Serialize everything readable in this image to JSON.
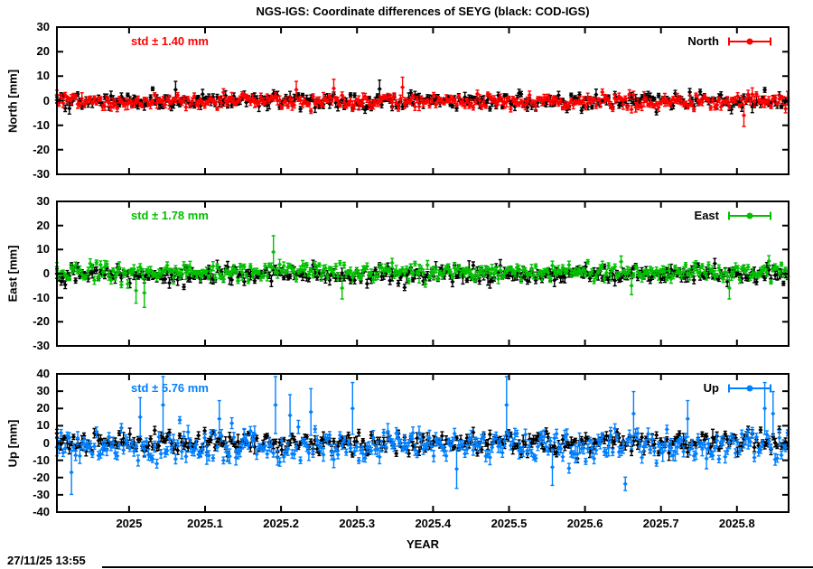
{
  "header": {
    "title": "NGS-IGS: Coordinate differences of SEYG (black: COD-IGS)"
  },
  "footer": {
    "timestamp": "27/11/25 13:55"
  },
  "xaxis": {
    "label": "YEAR",
    "range": [
      2024.905,
      2025.868
    ],
    "step": 0.00274,
    "tick_labels": [
      "2025",
      "2025.1",
      "2025.2",
      "2025.3",
      "2025.4",
      "2025.5",
      "2025.6",
      "2025.7",
      "2025.8"
    ]
  },
  "chart_data": [
    {
      "type": "scatter",
      "panel": "north",
      "ylabel": "North [mm]",
      "ylim": [
        -30,
        30
      ],
      "ytick_labels": [
        "-30",
        "-20",
        "-10",
        "0",
        "10",
        "20",
        "30"
      ],
      "std_label": "std ± 1.40 mm",
      "std_mm": 1.4,
      "legend_label": "North",
      "color": "#ff0000",
      "grid": false,
      "legend_position": "top-right",
      "series": [
        {
          "name": "COD-IGS",
          "color": "#000000",
          "mean": 0.0,
          "std": 1.5,
          "err_base": 0.7,
          "err_var": 0.7,
          "seed": 101,
          "outliers": [
            {
              "x": 2025.06,
              "y": 4.5
            },
            {
              "x": 2025.33,
              "y": 4.8
            }
          ]
        },
        {
          "name": "NGS-IGS",
          "color": "#ff0000",
          "mean": -0.4,
          "std": 1.4,
          "err_base": 0.7,
          "err_var": 0.7,
          "seed": 202,
          "outliers": [
            {
              "x": 2025.27,
              "y": 5.0
            },
            {
              "x": 2025.36,
              "y": 5.5
            },
            {
              "x": 2025.22,
              "y": 4.5
            },
            {
              "x": 2025.81,
              "y": -6.0
            }
          ]
        }
      ]
    },
    {
      "type": "scatter",
      "panel": "east",
      "ylabel": "East [mm]",
      "ylim": [
        -30,
        30
      ],
      "ytick_labels": [
        "-30",
        "-20",
        "-10",
        "0",
        "10",
        "20",
        "30"
      ],
      "std_label": "std ± 1.78 mm",
      "std_mm": 1.78,
      "legend_label": "East",
      "color": "#00c000",
      "grid": false,
      "legend_position": "top-right",
      "series": [
        {
          "name": "COD-IGS",
          "color": "#000000",
          "mean": -0.2,
          "std": 1.6,
          "err_base": 0.8,
          "err_var": 0.8,
          "seed": 303,
          "outliers": []
        },
        {
          "name": "NGS-IGS",
          "color": "#00c000",
          "mean": 0.8,
          "std": 1.78,
          "err_base": 0.8,
          "err_var": 0.8,
          "seed": 404,
          "outliers": [
            {
              "x": 2025.19,
              "y": 9.0
            },
            {
              "x": 2025.008,
              "y": -7.0
            },
            {
              "x": 2025.02,
              "y": -8.0
            },
            {
              "x": 2025.28,
              "y": -6.0
            },
            {
              "x": 2025.66,
              "y": -5.0
            },
            {
              "x": 2025.79,
              "y": -6.0
            }
          ]
        }
      ]
    },
    {
      "type": "scatter",
      "panel": "up",
      "ylabel": "Up [mm]",
      "ylim": [
        -40,
        40
      ],
      "ytick_labels": [
        "-40",
        "-30",
        "-20",
        "-10",
        "0",
        "10",
        "20",
        "30",
        "40"
      ],
      "std_label": "std ± 5.76 mm",
      "std_mm": 5.76,
      "legend_label": "Up",
      "color": "#0080ff",
      "grid": false,
      "legend_position": "top-right",
      "series": [
        {
          "name": "COD-IGS",
          "color": "#000000",
          "mean": 0.0,
          "std": 3.2,
          "err_base": 1.2,
          "err_var": 1.2,
          "seed": 505,
          "outliers": []
        },
        {
          "name": "NGS-IGS",
          "color": "#0080ff",
          "mean": -2.0,
          "std": 4.2,
          "err_base": 1.6,
          "err_var": 1.6,
          "seed": 606,
          "spike_prob": 0.025,
          "spike_scale": 2.2,
          "outliers": [
            {
              "x": 2024.925,
              "y": -17
            },
            {
              "x": 2025.015,
              "y": 15
            },
            {
              "x": 2025.044,
              "y": 22
            },
            {
              "x": 2025.119,
              "y": 14
            },
            {
              "x": 2025.193,
              "y": 22
            },
            {
              "x": 2025.211,
              "y": 16
            },
            {
              "x": 2025.24,
              "y": 18
            },
            {
              "x": 2025.294,
              "y": 20
            },
            {
              "x": 2025.431,
              "y": -15
            },
            {
              "x": 2025.496,
              "y": 22
            },
            {
              "x": 2025.556,
              "y": -14
            },
            {
              "x": 2025.663,
              "y": 17
            },
            {
              "x": 2025.734,
              "y": 14
            },
            {
              "x": 2025.836,
              "y": 20
            },
            {
              "x": 2025.848,
              "y": 17
            }
          ]
        }
      ]
    }
  ]
}
